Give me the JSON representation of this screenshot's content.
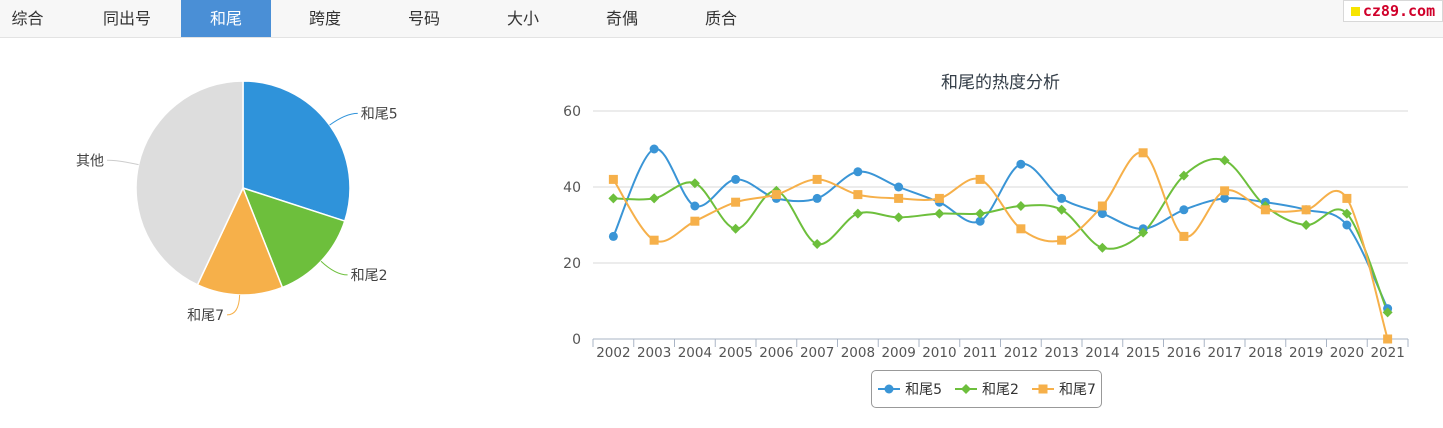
{
  "tabs": [
    {
      "label": "综合",
      "active": false
    },
    {
      "label": "同出号",
      "active": false
    },
    {
      "label": "和尾",
      "active": true
    },
    {
      "label": "跨度",
      "active": false
    },
    {
      "label": "号码",
      "active": false
    },
    {
      "label": "大小",
      "active": false
    },
    {
      "label": "奇偶",
      "active": false
    },
    {
      "label": "质合",
      "active": false
    }
  ],
  "logo": {
    "text": "cz89.com",
    "square_color": "#f7e400",
    "text_color": "#d0002a"
  },
  "chart_data": [
    {
      "type": "pie",
      "slices": [
        {
          "label": "和尾5",
          "value": 30,
          "color": "#2f93da"
        },
        {
          "label": "和尾2",
          "value": 14,
          "color": "#6dbf3c"
        },
        {
          "label": "和尾7",
          "value": 13,
          "color": "#f6b04a"
        },
        {
          "label": "其他",
          "value": 43,
          "color": "#dddddd"
        }
      ]
    },
    {
      "type": "line",
      "title": "和尾的热度分析",
      "categories": [
        "2002",
        "2003",
        "2004",
        "2005",
        "2006",
        "2007",
        "2008",
        "2009",
        "2010",
        "2011",
        "2012",
        "2013",
        "2014",
        "2015",
        "2016",
        "2017",
        "2018",
        "2019",
        "2020",
        "2021"
      ],
      "ylim": [
        0,
        60
      ],
      "yticks": [
        0,
        20,
        40,
        60
      ],
      "grid": true,
      "legend_position": "bottom",
      "series": [
        {
          "name": "和尾5",
          "color": "#3a95d6",
          "marker": "circle",
          "values": [
            27,
            50,
            35,
            42,
            37,
            37,
            44,
            40,
            36,
            31,
            46,
            37,
            33,
            29,
            34,
            37,
            36,
            34,
            30,
            8
          ]
        },
        {
          "name": "和尾2",
          "color": "#6dbf3c",
          "marker": "diamond",
          "values": [
            37,
            37,
            41,
            29,
            39,
            25,
            33,
            32,
            33,
            33,
            35,
            34,
            24,
            28,
            43,
            47,
            35,
            30,
            33,
            7
          ]
        },
        {
          "name": "和尾7",
          "color": "#f6b04a",
          "marker": "square",
          "values": [
            42,
            26,
            31,
            36,
            38,
            42,
            38,
            37,
            37,
            42,
            29,
            26,
            35,
            49,
            27,
            39,
            34,
            34,
            37,
            0
          ]
        }
      ]
    }
  ]
}
